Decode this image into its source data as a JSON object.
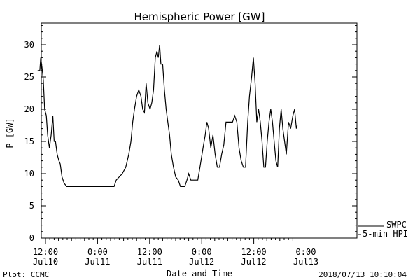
{
  "footer": {
    "plot_credit": "Plot: CCMC",
    "timestamp": "2018/07/13 10:10:04"
  },
  "legend": {
    "entries": [
      {
        "label": "SWPC",
        "color": "#000000"
      },
      {
        "label": "5-min HPI",
        "color": "#000000"
      }
    ]
  },
  "chart_data": {
    "type": "line",
    "title": "Hemispheric Power [GW]",
    "xlabel": "Date and Time",
    "ylabel": "P [GW]",
    "x_unit": "hours since the first tick (Jul10 12:00)",
    "xlim": [
      -1.8,
      58.0
    ],
    "ylim": [
      0,
      33
    ],
    "yticks": [
      0,
      5,
      10,
      15,
      20,
      25,
      30
    ],
    "xticks": [
      {
        "x": 0,
        "time": "12:00",
        "date": "Jul10"
      },
      {
        "x": 12,
        "time": "0:00",
        "date": "Jul11"
      },
      {
        "x": 24,
        "time": "12:00",
        "date": "Jul11"
      },
      {
        "x": 36,
        "time": "0:00",
        "date": "Jul12"
      },
      {
        "x": 48,
        "time": "12:00",
        "date": "Jul12"
      },
      {
        "x": 60,
        "time": "0:00",
        "date": "Jul13"
      }
    ],
    "grid": false,
    "legend_position": "bottom-right, outside",
    "series": [
      {
        "name": "5-min HPI",
        "color": "#000000",
        "points": [
          [
            -1.8,
            26
          ],
          [
            -1.3,
            26
          ],
          [
            -1.1,
            28
          ],
          [
            -0.8,
            26.5
          ],
          [
            -0.5,
            24.5
          ],
          [
            -0.2,
            20
          ],
          [
            0.2,
            19
          ],
          [
            0.5,
            16
          ],
          [
            0.9,
            14
          ],
          [
            1.3,
            16
          ],
          [
            1.7,
            19
          ],
          [
            2.0,
            15
          ],
          [
            2.3,
            15
          ],
          [
            2.7,
            13
          ],
          [
            3.1,
            12
          ],
          [
            3.4,
            11.5
          ],
          [
            3.8,
            9.5
          ],
          [
            4.3,
            8.5
          ],
          [
            4.9,
            8
          ],
          [
            6.0,
            8
          ],
          [
            8.0,
            8
          ],
          [
            10.0,
            8
          ],
          [
            12.0,
            8
          ],
          [
            14.0,
            8
          ],
          [
            15.8,
            8
          ],
          [
            16.3,
            9
          ],
          [
            17.0,
            9.5
          ],
          [
            17.7,
            10
          ],
          [
            18.5,
            11
          ],
          [
            19.2,
            13
          ],
          [
            19.7,
            15
          ],
          [
            20.1,
            18
          ],
          [
            20.5,
            20
          ],
          [
            21.0,
            22
          ],
          [
            21.5,
            23
          ],
          [
            22.0,
            22
          ],
          [
            22.4,
            20
          ],
          [
            22.8,
            19.5
          ],
          [
            23.2,
            24
          ],
          [
            23.6,
            21
          ],
          [
            24.1,
            20
          ],
          [
            24.5,
            21
          ],
          [
            24.9,
            23
          ],
          [
            25.3,
            28
          ],
          [
            25.7,
            29
          ],
          [
            26.0,
            28
          ],
          [
            26.3,
            30
          ],
          [
            26.6,
            27
          ],
          [
            27.0,
            27
          ],
          [
            27.4,
            23
          ],
          [
            27.8,
            20
          ],
          [
            28.2,
            18
          ],
          [
            28.6,
            16
          ],
          [
            29.0,
            13
          ],
          [
            29.5,
            11
          ],
          [
            30.0,
            9.5
          ],
          [
            30.6,
            9
          ],
          [
            31.1,
            8
          ],
          [
            31.6,
            8
          ],
          [
            32.1,
            8
          ],
          [
            32.6,
            9
          ],
          [
            33.0,
            10
          ],
          [
            33.5,
            9
          ],
          [
            34.2,
            9
          ],
          [
            35.1,
            9
          ],
          [
            35.6,
            11
          ],
          [
            36.3,
            14
          ],
          [
            36.8,
            16
          ],
          [
            37.2,
            18
          ],
          [
            37.6,
            17
          ],
          [
            38.1,
            14
          ],
          [
            38.6,
            16
          ],
          [
            39.1,
            13
          ],
          [
            39.6,
            11
          ],
          [
            40.1,
            11
          ],
          [
            40.6,
            13
          ],
          [
            41.1,
            14.5
          ],
          [
            41.6,
            18
          ],
          [
            42.1,
            18
          ],
          [
            42.6,
            18
          ],
          [
            43.1,
            18
          ],
          [
            43.6,
            19
          ],
          [
            44.1,
            18
          ],
          [
            44.6,
            14
          ],
          [
            45.1,
            12
          ],
          [
            45.6,
            11
          ],
          [
            46.1,
            11
          ],
          [
            46.6,
            18
          ],
          [
            47.0,
            22
          ],
          [
            47.5,
            25
          ],
          [
            47.9,
            28
          ],
          [
            48.3,
            24
          ],
          [
            48.7,
            18
          ],
          [
            49.1,
            20
          ],
          [
            49.5,
            18
          ],
          [
            49.9,
            15
          ],
          [
            50.3,
            11
          ],
          [
            50.7,
            11
          ],
          [
            51.1,
            15
          ],
          [
            51.5,
            18
          ],
          [
            51.9,
            20
          ],
          [
            52.3,
            18
          ],
          [
            52.7,
            15
          ],
          [
            53.1,
            12
          ],
          [
            53.5,
            11
          ],
          [
            53.9,
            17
          ],
          [
            54.3,
            20
          ],
          [
            54.7,
            17
          ],
          [
            55.1,
            15
          ],
          [
            55.5,
            13
          ],
          [
            56.0,
            18
          ],
          [
            56.5,
            17
          ],
          [
            57.0,
            19
          ],
          [
            57.4,
            20
          ],
          [
            57.8,
            17
          ],
          [
            58.0,
            17.5
          ]
        ]
      }
    ]
  }
}
